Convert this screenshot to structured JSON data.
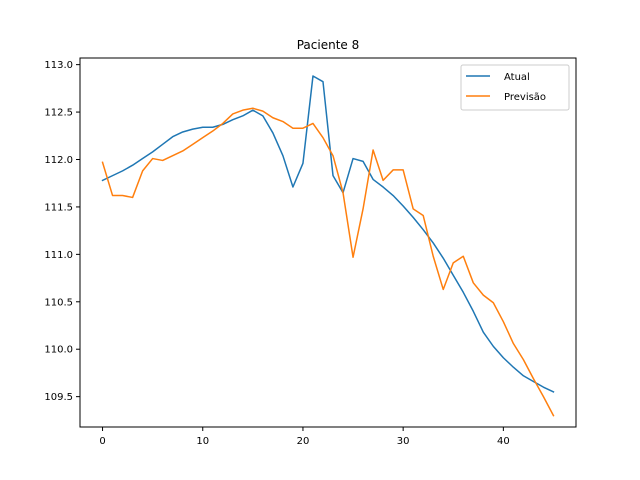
{
  "chart_data": {
    "type": "line",
    "title": "Paciente 8",
    "xlabel": "",
    "ylabel": "",
    "xlim": [
      -2.25,
      47.25
    ],
    "ylim": [
      109.18,
      113.07
    ],
    "xticks": [
      0,
      10,
      20,
      30,
      40
    ],
    "yticks": [
      109.5,
      110.0,
      110.5,
      111.0,
      111.5,
      112.0,
      112.5,
      113.0
    ],
    "ytick_labels": [
      "109.5",
      "110.0",
      "110.5",
      "111.0",
      "111.5",
      "112.0",
      "112.5",
      "113.0"
    ],
    "grid": false,
    "legend": "top-right",
    "x": [
      0,
      1,
      2,
      3,
      4,
      5,
      6,
      7,
      8,
      9,
      10,
      11,
      12,
      13,
      14,
      15,
      16,
      17,
      18,
      19,
      20,
      21,
      22,
      23,
      24,
      25,
      26,
      27,
      28,
      29,
      30,
      31,
      32,
      33,
      34,
      35,
      36,
      37,
      38,
      39,
      40,
      41,
      42,
      43,
      44,
      45
    ],
    "series": [
      {
        "name": "Atual",
        "color": "#1f77b4",
        "values": [
          111.78,
          111.83,
          111.88,
          111.94,
          112.01,
          112.08,
          112.16,
          112.24,
          112.29,
          112.32,
          112.34,
          112.34,
          112.37,
          112.42,
          112.46,
          112.52,
          112.46,
          112.28,
          112.04,
          111.71,
          111.96,
          112.88,
          112.82,
          111.83,
          111.65,
          112.01,
          111.98,
          111.79,
          111.71,
          111.62,
          111.51,
          111.39,
          111.26,
          111.12,
          110.96,
          110.78,
          110.6,
          110.4,
          110.18,
          110.03,
          109.91,
          109.81,
          109.72,
          109.66,
          109.6,
          109.55
        ]
      },
      {
        "name": "Previsão",
        "color": "#ff7f0e",
        "values": [
          111.97,
          111.62,
          111.62,
          111.6,
          111.88,
          112.01,
          111.99,
          112.04,
          112.09,
          112.16,
          112.23,
          112.3,
          112.38,
          112.48,
          112.52,
          112.54,
          112.51,
          112.44,
          112.4,
          112.33,
          112.33,
          112.38,
          112.23,
          112.04,
          111.65,
          110.97,
          111.48,
          112.1,
          111.78,
          111.89,
          111.89,
          111.48,
          111.41,
          110.98,
          110.63,
          110.91,
          110.98,
          110.7,
          110.57,
          110.49,
          110.29,
          110.06,
          109.89,
          109.69,
          109.5,
          109.3
        ]
      }
    ]
  }
}
